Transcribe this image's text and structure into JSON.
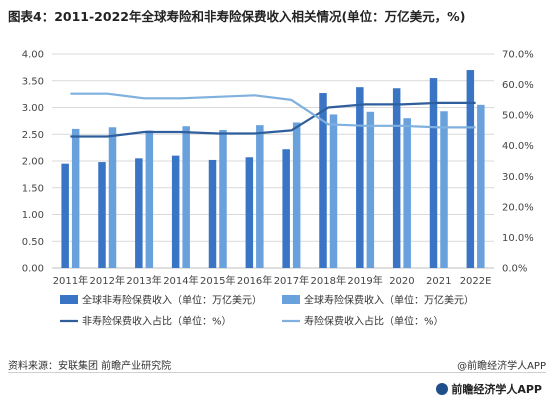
{
  "title": "图表4：2011-2022年全球寿险和非寿险保费收入相关情况(单位：万亿美元，%)",
  "footer": {
    "source": "资料来源：安联集团 前瞻产业研究院",
    "brand": "@前瞻经济学人APP",
    "watermark": "前瞻经济学人APP"
  },
  "colors": {
    "nonlife_bar": "#3a74c5",
    "life_bar": "#69a1dd",
    "nonlife_line": "#2e5f9c",
    "life_line": "#7fb0de",
    "grid": "#d9d9d9"
  },
  "chart_data": {
    "type": "bar",
    "categories": [
      "2011年",
      "2012年",
      "2013年",
      "2014年",
      "2015年",
      "2016年",
      "2017年",
      "2018年",
      "2019年",
      "2020",
      "2021",
      "2022E"
    ],
    "left_axis": {
      "ticks": [
        "0.00",
        "0.50",
        "1.00",
        "1.50",
        "2.00",
        "2.50",
        "3.00",
        "3.50",
        "4.00"
      ],
      "ylim": [
        0,
        4
      ]
    },
    "right_axis": {
      "ticks": [
        "0.0%",
        "10.0%",
        "20.0%",
        "30.0%",
        "40.0%",
        "50.0%",
        "60.0%",
        "70.0%"
      ],
      "ylim": [
        0,
        70
      ]
    },
    "series": [
      {
        "name": "全球非寿险保费收入（单位：万亿美元）",
        "kind": "bar",
        "axis": "left",
        "values": [
          1.95,
          1.98,
          2.05,
          2.1,
          2.02,
          2.07,
          2.22,
          3.27,
          3.38,
          3.36,
          3.55,
          3.7
        ]
      },
      {
        "name": "全球寿险保费收入（单位：万亿美元）",
        "kind": "bar",
        "axis": "left",
        "values": [
          2.6,
          2.63,
          2.57,
          2.65,
          2.58,
          2.67,
          2.72,
          2.87,
          2.92,
          2.8,
          2.93,
          3.05
        ]
      },
      {
        "name": "非寿险保费收入占比（单位：%）",
        "kind": "line",
        "axis": "right",
        "values": [
          43.0,
          43.0,
          44.5,
          44.5,
          44.0,
          44.0,
          45.0,
          52.5,
          53.5,
          53.5,
          54.0,
          54.0
        ]
      },
      {
        "name": "寿险保费收入占比（单位：%）",
        "kind": "line",
        "axis": "right",
        "values": [
          57.0,
          57.0,
          55.5,
          55.5,
          56.0,
          56.5,
          55.0,
          47.0,
          46.5,
          46.5,
          46.0,
          46.0
        ]
      }
    ],
    "grid": true,
    "legend_position": "bottom"
  }
}
